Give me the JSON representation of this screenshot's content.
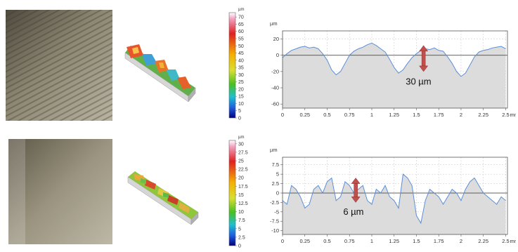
{
  "rows": [
    {
      "colorbar": {
        "unit": "µm",
        "ticks": [
          "70",
          "65",
          "60",
          "55",
          "50",
          "45",
          "40",
          "35",
          "30",
          "25",
          "20",
          "15",
          "10",
          "5",
          "0"
        ],
        "max": 73
      },
      "chart_data": {
        "type": "line",
        "ylabel": "µm",
        "xunit": "mm",
        "xticks": [
          "0",
          "0.25",
          "0.5",
          "0.75",
          "1",
          "1.25",
          "1.5",
          "1.75",
          "2",
          "2.25",
          "2.5"
        ],
        "yticks": [
          "20",
          "0",
          "-20",
          "-40",
          "-60"
        ],
        "xlim": [
          0,
          2.52
        ],
        "ylim": [
          -65,
          30
        ],
        "x": [
          0,
          0.05,
          0.1,
          0.15,
          0.2,
          0.25,
          0.3,
          0.35,
          0.4,
          0.45,
          0.5,
          0.55,
          0.6,
          0.65,
          0.7,
          0.75,
          0.8,
          0.85,
          0.9,
          0.95,
          1.0,
          1.05,
          1.1,
          1.15,
          1.2,
          1.25,
          1.3,
          1.35,
          1.4,
          1.45,
          1.5,
          1.55,
          1.6,
          1.65,
          1.7,
          1.75,
          1.8,
          1.85,
          1.9,
          1.95,
          2.0,
          2.05,
          2.1,
          2.15,
          2.2,
          2.25,
          2.3,
          2.35,
          2.4,
          2.45,
          2.5
        ],
        "y": [
          -3,
          2,
          6,
          8,
          10,
          11,
          9,
          10,
          8,
          2,
          -6,
          -18,
          -24,
          -20,
          -10,
          0,
          5,
          8,
          10,
          13,
          15,
          12,
          8,
          4,
          -5,
          -15,
          -22,
          -18,
          -10,
          -3,
          2,
          6,
          8,
          7,
          9,
          6,
          5,
          -2,
          -10,
          -20,
          -26,
          -22,
          -12,
          -2,
          4,
          6,
          7,
          9,
          10,
          11,
          8
        ],
        "annotation": "30 µm"
      }
    },
    {
      "colorbar": {
        "unit": "µm",
        "ticks": [
          "30",
          "27.5",
          "25",
          "22.5",
          "20",
          "17.5",
          "15",
          "12.5",
          "10",
          "7.5",
          "5",
          "2.5",
          "0"
        ],
        "max": 31
      },
      "chart_data": {
        "type": "line",
        "ylabel": "µm",
        "xunit": "mm",
        "xticks": [
          "0",
          "0.25",
          "0.5",
          "0.75",
          "1",
          "1.25",
          "1.5",
          "1.75",
          "2",
          "2.25",
          "2.5"
        ],
        "yticks": [
          "7.5",
          "5",
          "2.5",
          "0",
          "-2.5",
          "-5",
          "-7.5",
          "-10"
        ],
        "xlim": [
          0,
          2.52
        ],
        "ylim": [
          -11,
          9.5
        ],
        "x": [
          0,
          0.05,
          0.1,
          0.15,
          0.2,
          0.25,
          0.3,
          0.35,
          0.4,
          0.45,
          0.5,
          0.55,
          0.6,
          0.65,
          0.7,
          0.75,
          0.8,
          0.85,
          0.9,
          0.95,
          1.0,
          1.05,
          1.1,
          1.15,
          1.2,
          1.25,
          1.3,
          1.35,
          1.4,
          1.45,
          1.5,
          1.55,
          1.6,
          1.65,
          1.7,
          1.75,
          1.8,
          1.85,
          1.9,
          1.95,
          2.0,
          2.05,
          2.1,
          2.15,
          2.2,
          2.25,
          2.3,
          2.35,
          2.4,
          2.45,
          2.5
        ],
        "y": [
          -2,
          -3,
          2,
          1,
          -1,
          -4,
          -3,
          1,
          2,
          0,
          3,
          4,
          -2,
          -1,
          3,
          2,
          0,
          1,
          2,
          -2,
          -3,
          1,
          0,
          2,
          -1,
          -2,
          -4,
          5,
          4,
          2,
          -6,
          -8,
          -2,
          1,
          0,
          -1,
          -3,
          -1,
          1,
          0,
          -2,
          1,
          3,
          4,
          2,
          0,
          -1,
          -2,
          -3,
          -1,
          -2
        ],
        "annotation": "6 µm"
      }
    }
  ]
}
